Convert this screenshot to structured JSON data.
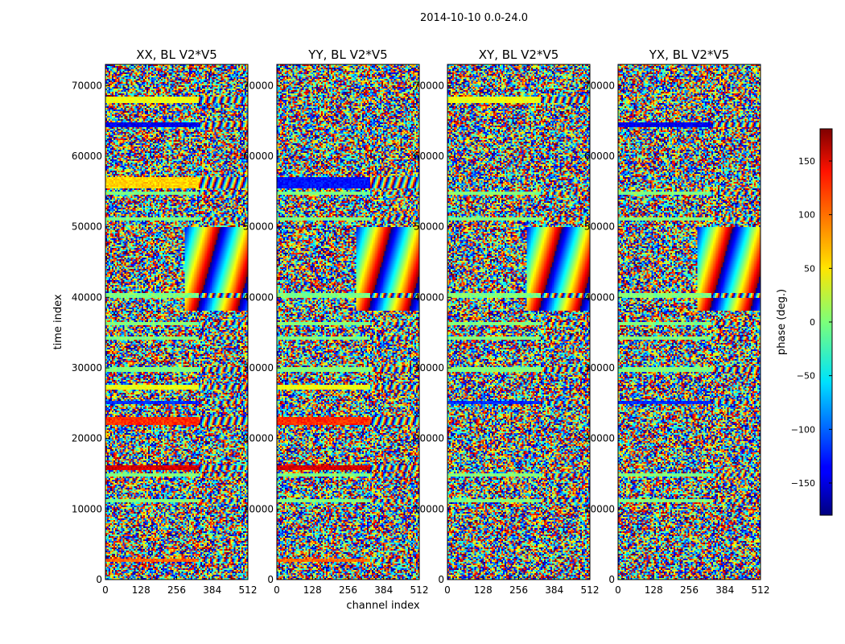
{
  "chart_data": {
    "type": "heatmap",
    "suptitle": "2014-10-10 0.0-24.0",
    "xlabel": "channel index",
    "ylabel": "time index",
    "xlim": [
      0,
      512
    ],
    "ylim": [
      0,
      73000
    ],
    "xticks": [
      0,
      128,
      256,
      384,
      512
    ],
    "yticks": [
      0,
      10000,
      20000,
      30000,
      40000,
      50000,
      60000,
      70000
    ],
    "panels": [
      {
        "title": "XX, BL V2*V5"
      },
      {
        "title": "YY, BL V2*V5"
      },
      {
        "title": "XY, BL V2*V5"
      },
      {
        "title": "YX, BL V2*V5"
      }
    ],
    "colorbar": {
      "label": "phase (deg.)",
      "range": [
        -180,
        180
      ],
      "ticks": [
        -150,
        -100,
        -50,
        0,
        50,
        100,
        150
      ],
      "colormap": "jet"
    }
  },
  "bands": [
    {
      "t0": 67500,
      "t1": 68500,
      "v": 40,
      "pol": [
        1,
        0,
        1,
        0
      ]
    },
    {
      "t0": 64200,
      "t1": 64700,
      "v": -140,
      "pol": [
        1,
        0,
        0,
        1
      ]
    },
    {
      "t0": 55500,
      "t1": 57000,
      "v": 60,
      "pol": [
        1,
        0,
        0,
        0
      ]
    },
    {
      "t0": 55500,
      "t1": 57000,
      "v": -130,
      "pol": [
        0,
        1,
        0,
        0
      ]
    },
    {
      "t0": 54500,
      "t1": 55000,
      "v": 0,
      "pol": [
        1,
        1,
        1,
        1
      ]
    },
    {
      "t0": 50800,
      "t1": 51300,
      "v": 0,
      "pol": [
        1,
        1,
        1,
        1
      ]
    },
    {
      "t0": 40000,
      "t1": 40500,
      "v": 0,
      "pol": [
        1,
        1,
        1,
        1
      ]
    },
    {
      "t0": 36000,
      "t1": 36400,
      "v": 0,
      "pol": [
        1,
        1,
        1,
        1
      ]
    },
    {
      "t0": 34000,
      "t1": 34400,
      "v": 0,
      "pol": [
        1,
        1,
        1,
        1
      ]
    },
    {
      "t0": 29500,
      "t1": 30000,
      "v": 0,
      "pol": [
        1,
        1,
        1,
        1
      ]
    },
    {
      "t0": 27000,
      "t1": 27600,
      "v": 40,
      "pol": [
        1,
        1,
        0,
        0
      ]
    },
    {
      "t0": 24800,
      "t1": 25300,
      "v": -120,
      "pol": [
        1,
        0,
        1,
        1
      ]
    },
    {
      "t0": 21800,
      "t1": 23000,
      "v": 120,
      "pol": [
        1,
        1,
        0,
        0
      ]
    },
    {
      "t0": 15500,
      "t1": 16100,
      "v": 150,
      "pol": [
        1,
        1,
        0,
        0
      ]
    },
    {
      "t0": 14500,
      "t1": 15000,
      "v": 0,
      "pol": [
        1,
        1,
        1,
        1
      ]
    },
    {
      "t0": 11000,
      "t1": 11400,
      "v": 0,
      "pol": [
        1,
        1,
        1,
        1
      ]
    },
    {
      "t0": 2600,
      "t1": 3000,
      "v": 100,
      "pol": [
        1,
        1,
        0,
        0
      ]
    }
  ]
}
